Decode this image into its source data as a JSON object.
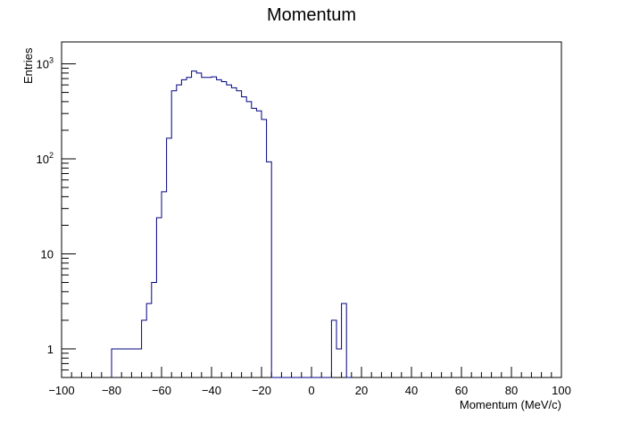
{
  "chart_data": {
    "type": "histogram",
    "title": "Momentum",
    "xlabel": "Momentum (MeV/c)",
    "ylabel": "Entries",
    "xlim": [
      -100,
      100
    ],
    "ylim": [
      0.5,
      1700
    ],
    "y_scale": "log",
    "grid": false,
    "line_color": "#000080",
    "x_ticks": [
      {
        "value": -100,
        "label": "−100"
      },
      {
        "value": -80,
        "label": "−80"
      },
      {
        "value": -60,
        "label": "−60"
      },
      {
        "value": -40,
        "label": "−40"
      },
      {
        "value": -20,
        "label": "−20"
      },
      {
        "value": 0,
        "label": "0"
      },
      {
        "value": 20,
        "label": "20"
      },
      {
        "value": 40,
        "label": "40"
      },
      {
        "value": 60,
        "label": "60"
      },
      {
        "value": 80,
        "label": "80"
      },
      {
        "value": 100,
        "label": "100"
      }
    ],
    "y_ticks": [
      {
        "value": 1,
        "base": "1",
        "exp": ""
      },
      {
        "value": 10,
        "base": "10",
        "exp": ""
      },
      {
        "value": 100,
        "base": "10",
        "exp": "2"
      },
      {
        "value": 1000,
        "base": "10",
        "exp": "3"
      }
    ],
    "bin_edges_start": -80,
    "bin_width": 2,
    "counts": [
      1,
      1,
      1,
      1,
      1,
      1,
      2,
      3,
      5,
      24,
      45,
      165,
      520,
      600,
      680,
      720,
      840,
      800,
      720,
      720,
      730,
      680,
      650,
      600,
      560,
      520,
      450,
      400,
      340,
      320,
      260,
      93,
      0,
      0,
      0,
      0,
      0,
      0,
      0,
      0,
      0,
      0,
      0,
      0,
      2,
      1,
      3,
      0
    ]
  }
}
